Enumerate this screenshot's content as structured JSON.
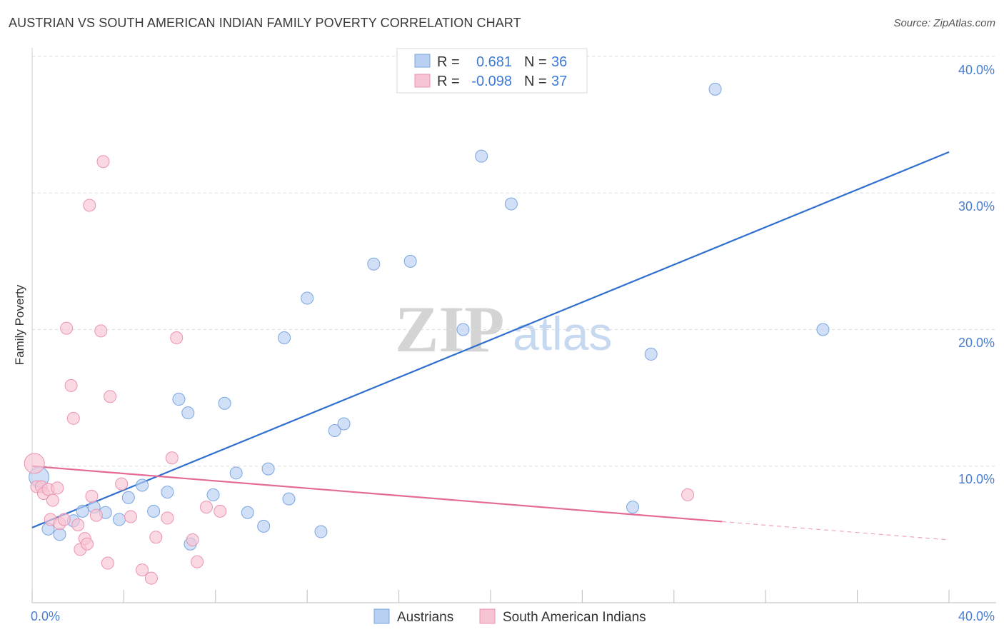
{
  "title": "AUSTRIAN VS SOUTH AMERICAN INDIAN FAMILY POVERTY CORRELATION CHART",
  "source": "Source: ZipAtlas.com",
  "watermark": {
    "zip": "ZIP",
    "atlas": "atlas"
  },
  "colors": {
    "blue_fill": "#b8d0f2",
    "blue_stroke": "#7aa6e0",
    "blue_line": "#2f6fcf",
    "pink_fill": "#f7c4d4",
    "pink_stroke": "#ec93b0",
    "pink_line": "#e46b98",
    "axis_text": "#4a7fd0",
    "grid": "#dcdcdc"
  },
  "legend": {
    "rows": [
      {
        "r_label": "R =",
        "r_value": "0.681",
        "n_label": "N =",
        "n_value": "36",
        "swatch": "blue"
      },
      {
        "r_label": "R =",
        "r_value": "-0.098",
        "n_label": "N =",
        "n_value": "37",
        "swatch": "pink"
      }
    ]
  },
  "bottom_legend": [
    "Austrians",
    "South American Indians"
  ],
  "chart_data": {
    "type": "scatter",
    "title": "AUSTRIAN VS SOUTH AMERICAN INDIAN FAMILY POVERTY CORRELATION CHART",
    "xlabel": "",
    "ylabel": "Family Poverty",
    "xlim": [
      0,
      40
    ],
    "ylim": [
      0,
      40
    ],
    "x_tick_labels": [
      "0.0%",
      "40.0%"
    ],
    "y_ticks": [
      10,
      20,
      30,
      40
    ],
    "y_tick_labels": [
      "10.0%",
      "20.0%",
      "30.0%",
      "40.0%"
    ],
    "grid": true,
    "legend_position": "top-center",
    "series": [
      {
        "name": "Austrians",
        "color": "#b8d0f2",
        "points": [
          [
            0.3,
            9.2
          ],
          [
            0.7,
            5.4
          ],
          [
            1.2,
            5.0
          ],
          [
            1.8,
            6.0
          ],
          [
            2.2,
            6.7
          ],
          [
            2.7,
            7.0
          ],
          [
            3.2,
            6.6
          ],
          [
            3.8,
            6.1
          ],
          [
            4.2,
            7.7
          ],
          [
            4.8,
            8.6
          ],
          [
            5.3,
            6.7
          ],
          [
            5.9,
            8.1
          ],
          [
            6.4,
            14.9
          ],
          [
            6.9,
            4.3
          ],
          [
            6.8,
            13.9
          ],
          [
            7.9,
            7.9
          ],
          [
            8.4,
            14.6
          ],
          [
            8.9,
            9.5
          ],
          [
            9.4,
            6.6
          ],
          [
            10.1,
            5.6
          ],
          [
            10.3,
            9.8
          ],
          [
            11.0,
            19.4
          ],
          [
            11.2,
            7.6
          ],
          [
            12.0,
            22.3
          ],
          [
            12.6,
            5.2
          ],
          [
            13.2,
            12.6
          ],
          [
            13.6,
            13.1
          ],
          [
            14.9,
            24.8
          ],
          [
            16.5,
            25.0
          ],
          [
            18.8,
            20.0
          ],
          [
            19.6,
            32.7
          ],
          [
            20.9,
            29.2
          ],
          [
            26.2,
            7.0
          ],
          [
            27.0,
            18.2
          ],
          [
            29.8,
            37.6
          ],
          [
            34.5,
            20.0
          ]
        ],
        "trend": {
          "x": [
            0,
            40
          ],
          "y": [
            5.5,
            33.0
          ],
          "dashed_from_x": null
        }
      },
      {
        "name": "South American Indians",
        "color": "#f7c4d4",
        "points": [
          [
            0.1,
            10.2
          ],
          [
            0.2,
            8.5
          ],
          [
            0.4,
            8.5
          ],
          [
            0.5,
            8.0
          ],
          [
            0.7,
            8.3
          ],
          [
            0.8,
            6.1
          ],
          [
            0.9,
            7.5
          ],
          [
            1.1,
            8.4
          ],
          [
            1.2,
            5.8
          ],
          [
            1.4,
            6.1
          ],
          [
            1.5,
            20.1
          ],
          [
            1.7,
            15.9
          ],
          [
            1.8,
            13.5
          ],
          [
            2.0,
            5.7
          ],
          [
            2.1,
            3.9
          ],
          [
            2.3,
            4.7
          ],
          [
            2.4,
            4.3
          ],
          [
            2.5,
            29.1
          ],
          [
            2.6,
            7.8
          ],
          [
            2.8,
            6.4
          ],
          [
            3.0,
            19.9
          ],
          [
            3.1,
            32.3
          ],
          [
            3.3,
            2.9
          ],
          [
            3.4,
            15.1
          ],
          [
            3.9,
            8.7
          ],
          [
            4.3,
            6.3
          ],
          [
            4.8,
            2.4
          ],
          [
            5.2,
            1.8
          ],
          [
            5.4,
            4.8
          ],
          [
            5.9,
            6.2
          ],
          [
            6.1,
            10.6
          ],
          [
            6.3,
            19.4
          ],
          [
            7.0,
            4.6
          ],
          [
            7.2,
            3.0
          ],
          [
            7.6,
            7.0
          ],
          [
            8.2,
            6.7
          ],
          [
            28.6,
            7.9
          ]
        ],
        "trend": {
          "x": [
            0,
            40
          ],
          "y": [
            10.0,
            4.6
          ],
          "dashed_from_x": 30.1
        }
      }
    ]
  }
}
